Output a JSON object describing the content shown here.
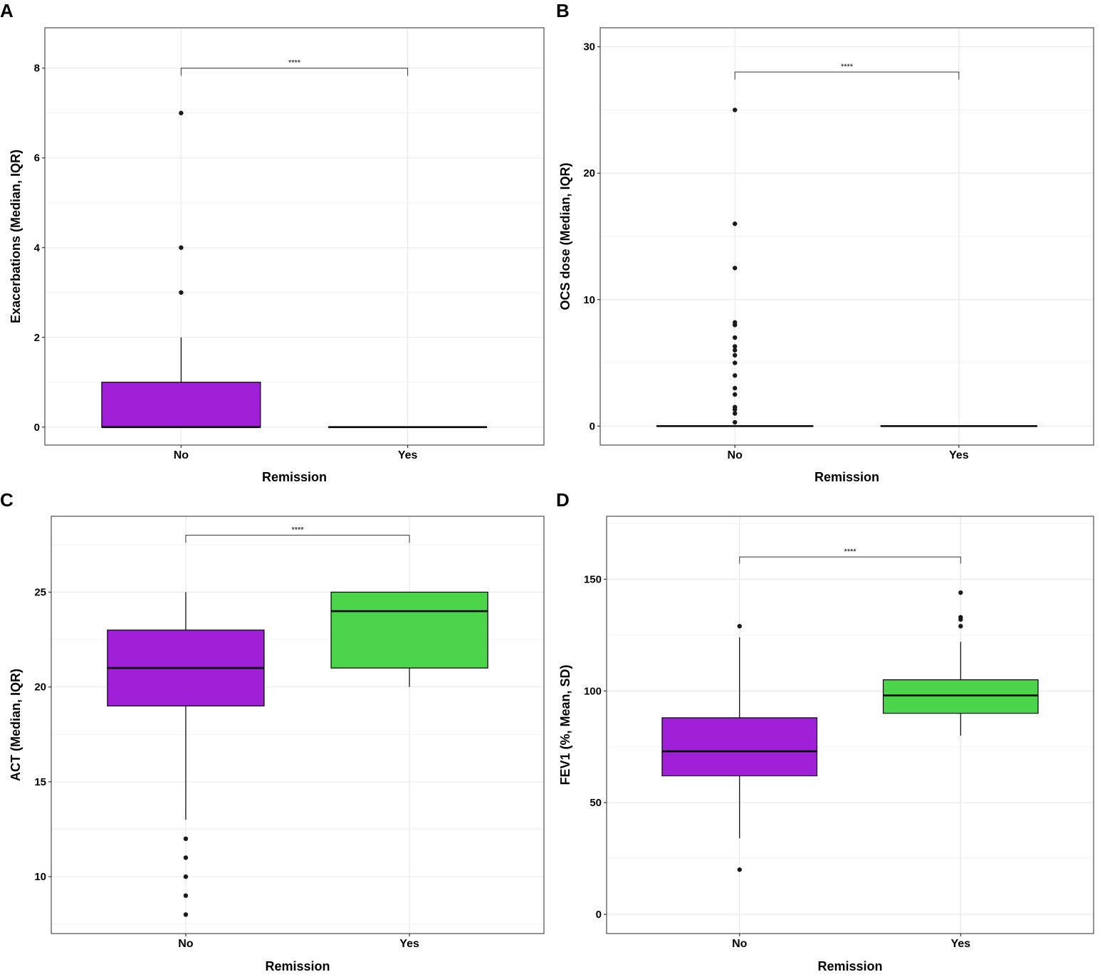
{
  "colors": {
    "No": "#a020d8",
    "Yes": "#4cd44a",
    "grid": "#ebebeb",
    "frame": "#4d4d4d",
    "point": "#1a1a1a"
  },
  "chart_data": [
    {
      "panel": "A",
      "type": "box",
      "xlabel": "Remission",
      "ylabel": "Exacerbations (Median, IQR)",
      "ylim": [
        -0.4,
        8.9
      ],
      "yticks": [
        0,
        2,
        4,
        6,
        8
      ],
      "categories": [
        "No",
        "Yes"
      ],
      "boxes": [
        {
          "group": "No",
          "q1": 0,
          "median": 0,
          "q3": 1,
          "whisker_low": 0,
          "whisker_high": 2,
          "outliers": [
            3,
            4,
            7
          ]
        },
        {
          "group": "Yes",
          "q1": 0,
          "median": 0,
          "q3": 0,
          "whisker_low": 0,
          "whisker_high": 0,
          "outliers": []
        }
      ],
      "significance": {
        "label": "****",
        "y": 8,
        "drop": 0.17
      }
    },
    {
      "panel": "B",
      "type": "box",
      "xlabel": "Remission",
      "ylabel": "OCS dose (Median, IQR)",
      "ylim": [
        -1.5,
        31.5
      ],
      "yticks": [
        0,
        10,
        20,
        30
      ],
      "categories": [
        "No",
        "Yes"
      ],
      "boxes": [
        {
          "group": "No",
          "q1": 0,
          "median": 0,
          "q3": 0,
          "whisker_low": 0,
          "whisker_high": 0,
          "outliers": [
            0.3,
            1,
            1.3,
            1.5,
            2.5,
            3,
            4,
            5,
            5.6,
            6,
            6.3,
            7,
            8,
            8.2,
            12.5,
            16,
            25
          ]
        },
        {
          "group": "Yes",
          "q1": 0,
          "median": 0,
          "q3": 0,
          "whisker_low": 0,
          "whisker_high": 0,
          "outliers": []
        }
      ],
      "significance": {
        "label": "****",
        "y": 28,
        "drop": 0.6
      }
    },
    {
      "panel": "C",
      "type": "box",
      "xlabel": "Remission",
      "ylabel": "ACT (Median, IQR)",
      "ylim": [
        7.0,
        29.0
      ],
      "yticks": [
        10,
        15,
        20,
        25
      ],
      "categories": [
        "No",
        "Yes"
      ],
      "boxes": [
        {
          "group": "No",
          "q1": 19,
          "median": 21,
          "q3": 23,
          "whisker_low": 13,
          "whisker_high": 25,
          "outliers": [
            8,
            9,
            10,
            11,
            12
          ]
        },
        {
          "group": "Yes",
          "q1": 21,
          "median": 24,
          "q3": 25,
          "whisker_low": 20,
          "whisker_high": 25,
          "outliers": []
        }
      ],
      "significance": {
        "label": "****",
        "y": 28,
        "drop": 0.4
      }
    },
    {
      "panel": "D",
      "type": "box",
      "xlabel": "Remission",
      "ylabel": "FEV1 (%, Mean, SD)",
      "ylim": [
        -8.6,
        178.2
      ],
      "yticks": [
        0,
        50,
        100,
        150
      ],
      "categories": [
        "No",
        "Yes"
      ],
      "boxes": [
        {
          "group": "No",
          "q1": 62,
          "median": 73,
          "q3": 88,
          "whisker_low": 34,
          "whisker_high": 124,
          "outliers": [
            20,
            129
          ]
        },
        {
          "group": "Yes",
          "q1": 90,
          "median": 98,
          "q3": 105,
          "whisker_low": 80,
          "whisker_high": 122,
          "outliers": [
            129,
            132,
            133,
            144
          ]
        }
      ],
      "significance": {
        "label": "****",
        "y": 160,
        "drop": 3
      }
    }
  ]
}
